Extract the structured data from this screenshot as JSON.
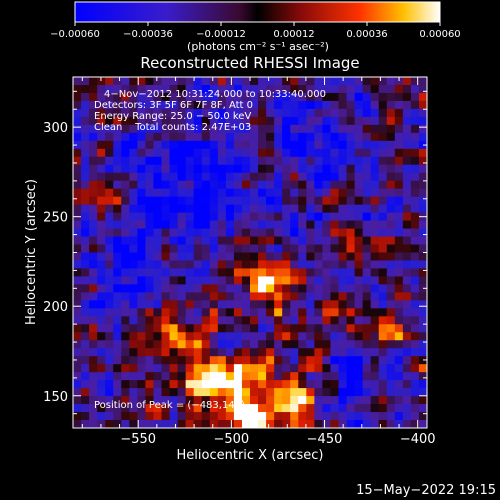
{
  "chart_data": {
    "type": "heatmap",
    "title": "Reconstructed RHESSI Image",
    "xlabel": "Heliocentric X (arcsec)",
    "ylabel": "Heliocentric Y (arcsec)",
    "xlim": [
      -585,
      -395
    ],
    "ylim": [
      132,
      328
    ],
    "x_ticks": [
      -550,
      -500,
      -450,
      -400
    ],
    "y_ticks": [
      150,
      200,
      250,
      300
    ],
    "x_tick_labels": [
      "−550",
      "−500",
      "−450",
      "−400"
    ],
    "y_tick_labels": [
      "150",
      "200",
      "250",
      "300"
    ],
    "colorbar": {
      "range": [
        -0.0006,
        0.0006
      ],
      "ticks": [
        -0.0006,
        -0.00036,
        -0.00012,
        0.00012,
        0.00036,
        0.0006
      ],
      "tick_labels": [
        "−0.00060",
        "−0.00036",
        "−0.00012",
        "0.00012",
        "0.00036",
        "0.00060"
      ],
      "units_label": "(photons cm⁻² s⁻¹ asec⁻²)"
    },
    "annotations": {
      "line1": "4−Nov−2012 10:31:24.000 to 10:33:40.000",
      "line2": "Detectors: 3F 5F 6F 7F 8F, Att 0",
      "line3": "Energy Range: 25.0 − 50.0 keV",
      "line4": "Clean    Total counts: 2.47E+03"
    },
    "peak_label": "Position of Peak = (−483,140)",
    "peak_position": [
      -483,
      140
    ],
    "grid": false
  },
  "footer": {
    "timestamp": "15−May−2022 19:15"
  }
}
